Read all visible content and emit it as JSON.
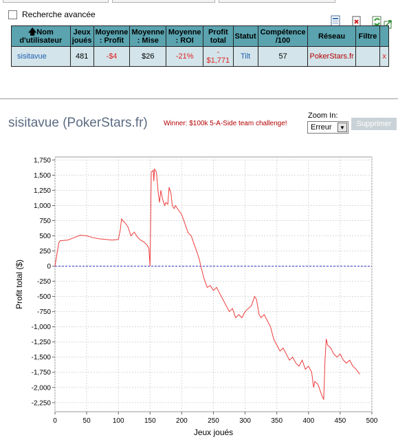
{
  "advanced_search": {
    "label": "Recherche avancée"
  },
  "table": {
    "headers": [
      "Nom d'utilisateur",
      "Jeux joués",
      "Moyenne : Profit",
      "Moyenne : Mise",
      "Moyenne : ROI",
      "Profit total",
      "Statut",
      "Compétence /100",
      "Réseau",
      "Filtre",
      ""
    ],
    "row": {
      "username": "sisitavue",
      "games": "481",
      "avg_profit": "-$4",
      "avg_stake": "$26",
      "avg_roi": "-21%",
      "total_profit_sign": "-",
      "total_profit": "$1,771",
      "status": "Tilt",
      "skill": "57",
      "network": "PokerStars.fr",
      "filter": "",
      "remove": "x"
    }
  },
  "profile": {
    "title": "sisitavue (PokerStars.fr)",
    "winner_note": "Winner: $100k 5-A-Side team challenge!",
    "zoom_label": "Zoom In:",
    "zoom_value": "Erreur",
    "delete_label": "Supprimer"
  },
  "colors": {
    "header_bg": "#5aa3af",
    "row_bg": "#d3e4ea",
    "negative": "#e02020",
    "line": "#ee3b3b",
    "zero_line": "#3333cc"
  },
  "chart_data": {
    "type": "line",
    "xlabel": "Jeux joués",
    "ylabel": "Profit total ($)",
    "xlim": [
      0,
      500
    ],
    "ylim": [
      -2400,
      1800
    ],
    "xticks": [
      0,
      50,
      100,
      150,
      200,
      250,
      300,
      350,
      400,
      450,
      500
    ],
    "yticks": [
      1750,
      1500,
      1250,
      1000,
      750,
      500,
      250,
      0,
      -250,
      -500,
      -750,
      -1000,
      -1250,
      -1500,
      -1750,
      -2000,
      -2250
    ],
    "ytick_labels": [
      "1,750",
      "1,500",
      "1,250",
      "1,000",
      "750",
      "500",
      "250",
      "0",
      "-250",
      "-500",
      "-750",
      "-1,000",
      "-1,250",
      "-1,500",
      "-1,750",
      "-2,000",
      "-2,250"
    ],
    "grid": true,
    "series": [
      {
        "x": [
          0,
          3,
          6,
          8,
          20,
          30,
          40,
          50,
          60,
          70,
          80,
          90,
          100,
          103,
          105,
          107,
          110,
          115,
          120,
          125,
          130,
          135,
          140,
          145,
          148,
          150,
          152,
          155,
          156,
          157,
          160,
          163,
          165,
          167,
          170,
          173,
          175,
          178,
          180,
          183,
          185,
          188,
          190,
          195,
          200,
          205,
          210,
          215,
          220,
          225,
          228,
          230,
          235,
          240,
          245,
          250,
          255,
          260,
          265,
          270,
          275,
          280,
          285,
          290,
          295,
          300,
          305,
          310,
          315,
          318,
          322,
          325,
          330,
          335,
          340,
          345,
          350,
          355,
          360,
          365,
          370,
          375,
          380,
          385,
          390,
          395,
          400,
          405,
          408,
          410,
          415,
          420,
          424,
          426,
          428,
          430,
          435,
          440,
          445,
          450,
          455,
          460,
          465,
          470,
          475,
          481
        ],
        "y": [
          0,
          200,
          380,
          420,
          430,
          470,
          510,
          500,
          470,
          450,
          440,
          430,
          440,
          600,
          780,
          750,
          720,
          650,
          500,
          560,
          480,
          430,
          400,
          350,
          300,
          0,
          1550,
          1580,
          1400,
          1600,
          1550,
          1200,
          1050,
          1250,
          1100,
          1000,
          1050,
          1020,
          1300,
          1200,
          1000,
          950,
          1000,
          920,
          850,
          700,
          550,
          500,
          350,
          200,
          100,
          0,
          -200,
          -350,
          -320,
          -400,
          -350,
          -450,
          -550,
          -650,
          -750,
          -700,
          -850,
          -800,
          -850,
          -750,
          -700,
          -650,
          -500,
          -550,
          -800,
          -850,
          -800,
          -900,
          -1000,
          -1200,
          -1300,
          -1400,
          -1350,
          -1450,
          -1550,
          -1500,
          -1600,
          -1650,
          -1550,
          -1700,
          -1650,
          -1750,
          -2000,
          -1900,
          -1950,
          -2100,
          -2200,
          -1550,
          -1200,
          -1300,
          -1350,
          -1450,
          -1500,
          -1450,
          -1550,
          -1600,
          -1550,
          -1650,
          -1700,
          -1780
        ]
      }
    ]
  }
}
